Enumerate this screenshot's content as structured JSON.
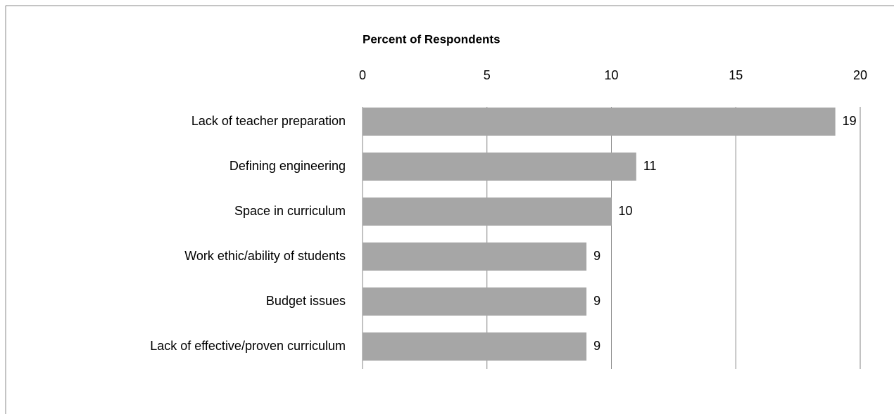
{
  "chart_data": {
    "type": "bar",
    "orientation": "horizontal",
    "title": "Percent of Respondents",
    "categories": [
      "Lack of teacher preparation",
      "Defining engineering",
      "Space in curriculum",
      "Work ethic/ability of students",
      "Budget issues",
      "Lack of effective/proven curriculum"
    ],
    "values": [
      19,
      11,
      10,
      9,
      9,
      9
    ],
    "color": "#a6a6a6",
    "xlim": [
      0,
      20
    ],
    "xticks": [
      0,
      5,
      10,
      15,
      20
    ],
    "grid": true,
    "axis_position": "top"
  }
}
